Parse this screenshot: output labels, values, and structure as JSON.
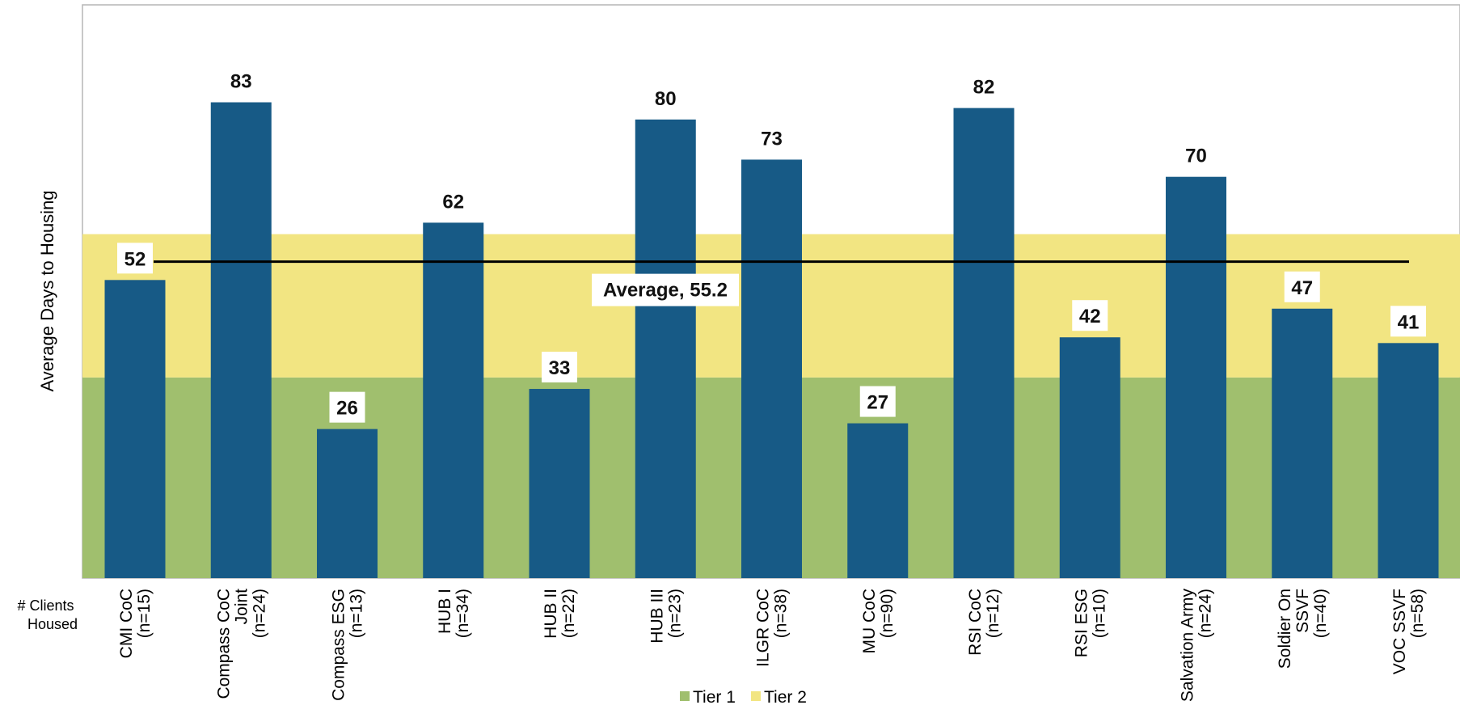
{
  "chart_data": {
    "type": "bar",
    "ylabel": "Average Days to Housing",
    "x_header_label": [
      "# Clients",
      "Housed"
    ],
    "categories": [
      [
        "CMI CoC",
        "(n=15)"
      ],
      [
        "Compass CoC",
        "Joint",
        "(n=24)"
      ],
      [
        "Compass ESG",
        "(n=13)"
      ],
      [
        "HUB I",
        "(n=34)"
      ],
      [
        "HUB II",
        "(n=22)"
      ],
      [
        "HUB III",
        "(n=23)"
      ],
      [
        "ILGR CoC",
        "(n=38)"
      ],
      [
        "MU CoC",
        "(n=90)"
      ],
      [
        "RSI CoC",
        "(n=12)"
      ],
      [
        "RSI ESG",
        "(n=10)"
      ],
      [
        "Salvation Army",
        "(n=24)"
      ],
      [
        "Soldier On",
        "SSVF",
        "(n=40)"
      ],
      [
        "VOC SSVF",
        "(n=58)"
      ]
    ],
    "values": [
      52,
      83,
      26,
      62,
      33,
      80,
      73,
      27,
      82,
      42,
      70,
      47,
      41
    ],
    "value_labels": [
      "52",
      "83",
      "26",
      "62",
      "33",
      "80",
      "73",
      "27",
      "82",
      "42",
      "70",
      "47",
      "41"
    ],
    "average": {
      "value": 55.2,
      "label": "Average, 55.2"
    },
    "bands": [
      {
        "name": "Tier 1",
        "from": 0,
        "to": 35,
        "color": "#a0bf6e"
      },
      {
        "name": "Tier 2",
        "from": 35,
        "to": 60,
        "color": "#f2e582"
      }
    ],
    "legend": [
      {
        "label": "Tier 1",
        "color": "#a0bf6e"
      },
      {
        "label": "Tier 2",
        "color": "#f2e582"
      }
    ],
    "legend_position": "bottom",
    "ylim": [
      0,
      100
    ],
    "bar_color": "#175a86",
    "grid": false
  }
}
